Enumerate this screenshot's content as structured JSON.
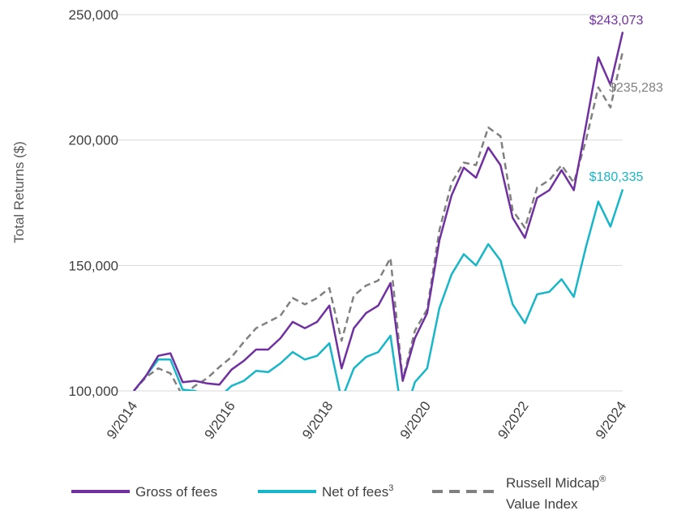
{
  "chart_data": {
    "type": "line",
    "ylabel": "Total Returns ($)",
    "xlabel": "",
    "ylim": [
      100000,
      250000
    ],
    "yticks": [
      "100,000",
      "150,000",
      "200,000",
      "250,000"
    ],
    "ytick_values": [
      100000,
      150000,
      200000,
      250000
    ],
    "xticks": [
      "9/2014",
      "9/2016",
      "9/2018",
      "9/2020",
      "9/2022",
      "9/2024"
    ],
    "xtick_values": [
      2014.75,
      2016.75,
      2018.75,
      2020.75,
      2022.75,
      2024.75
    ],
    "grid": true,
    "legend_position": "bottom",
    "series": [
      {
        "name": "Gross of fees",
        "color": "#7030a0",
        "style": "solid",
        "end_label": "$243,073",
        "x": [
          2014.75,
          2015.0,
          2015.25,
          2015.5,
          2015.75,
          2016.0,
          2016.25,
          2016.5,
          2016.75,
          2017.0,
          2017.25,
          2017.5,
          2017.75,
          2018.0,
          2018.25,
          2018.5,
          2018.75,
          2019.0,
          2019.25,
          2019.5,
          2019.75,
          2020.0,
          2020.25,
          2020.5,
          2020.75,
          2021.0,
          2021.25,
          2021.5,
          2021.75,
          2022.0,
          2022.25,
          2022.5,
          2022.75,
          2023.0,
          2023.25,
          2023.5,
          2023.75,
          2024.0,
          2024.25,
          2024.5,
          2024.75
        ],
        "values": [
          100000,
          106000,
          114000,
          115000,
          103500,
          104000,
          103000,
          102500,
          108500,
          112000,
          116500,
          116500,
          121000,
          127500,
          125000,
          127500,
          134000,
          109000,
          125000,
          131000,
          134000,
          143000,
          104000,
          121000,
          131000,
          160000,
          178000,
          189000,
          185000,
          197000,
          190000,
          169000,
          161000,
          177000,
          180000,
          188000,
          180000,
          206000,
          233000,
          222000,
          243073
        ]
      },
      {
        "name": "Net of fees",
        "name_sup": "3",
        "color": "#17b6c8",
        "style": "solid",
        "end_label": "$180,335",
        "x": [
          2014.75,
          2015.0,
          2015.25,
          2015.5,
          2015.75,
          2016.0,
          2016.25,
          2016.5,
          2016.75,
          2017.0,
          2017.25,
          2017.5,
          2017.75,
          2018.0,
          2018.25,
          2018.5,
          2018.75,
          2019.0,
          2019.25,
          2019.5,
          2019.75,
          2020.0,
          2020.25,
          2020.5,
          2020.75,
          2021.0,
          2021.25,
          2021.5,
          2021.75,
          2022.0,
          2022.25,
          2022.5,
          2022.75,
          2023.0,
          2023.25,
          2023.5,
          2023.75,
          2024.0,
          2024.25,
          2024.5,
          2024.75
        ],
        "values": [
          100000,
          106000,
          112500,
          112500,
          100500,
          100000,
          98000,
          97500,
          102000,
          104000,
          108000,
          107500,
          111000,
          115500,
          112500,
          114000,
          119000,
          96500,
          109000,
          113500,
          115500,
          122000,
          88000,
          103500,
          109000,
          133000,
          146500,
          154500,
          150000,
          158500,
          152000,
          134500,
          127000,
          138500,
          139500,
          144500,
          137500,
          157500,
          175500,
          165500,
          180335
        ]
      },
      {
        "name": "Russell Midcap® Value Index",
        "name_line1": "Russell Midcap",
        "name_line1_sup": "®",
        "name_line2": "Value Index",
        "color": "#808080",
        "style": "dashed",
        "end_label": "$235,283",
        "x": [
          2014.75,
          2015.0,
          2015.25,
          2015.5,
          2015.75,
          2016.0,
          2016.25,
          2016.5,
          2016.75,
          2017.0,
          2017.25,
          2017.5,
          2017.75,
          2018.0,
          2018.25,
          2018.5,
          2018.75,
          2019.0,
          2019.25,
          2019.5,
          2019.75,
          2020.0,
          2020.25,
          2020.5,
          2020.75,
          2021.0,
          2021.25,
          2021.5,
          2021.75,
          2022.0,
          2022.25,
          2022.5,
          2022.75,
          2023.0,
          2023.25,
          2023.5,
          2023.75,
          2024.0,
          2024.25,
          2024.5,
          2024.75
        ],
        "values": [
          100000,
          105500,
          109000,
          107000,
          98000,
          102000,
          105000,
          109500,
          113500,
          119500,
          125000,
          127500,
          130000,
          137000,
          134500,
          137000,
          141000,
          120000,
          138000,
          142000,
          144000,
          153000,
          104500,
          124000,
          132500,
          164000,
          183000,
          191000,
          190000,
          205000,
          201500,
          172000,
          165000,
          181000,
          184000,
          190000,
          183000,
          200000,
          221000,
          213000,
          235283
        ]
      }
    ]
  }
}
